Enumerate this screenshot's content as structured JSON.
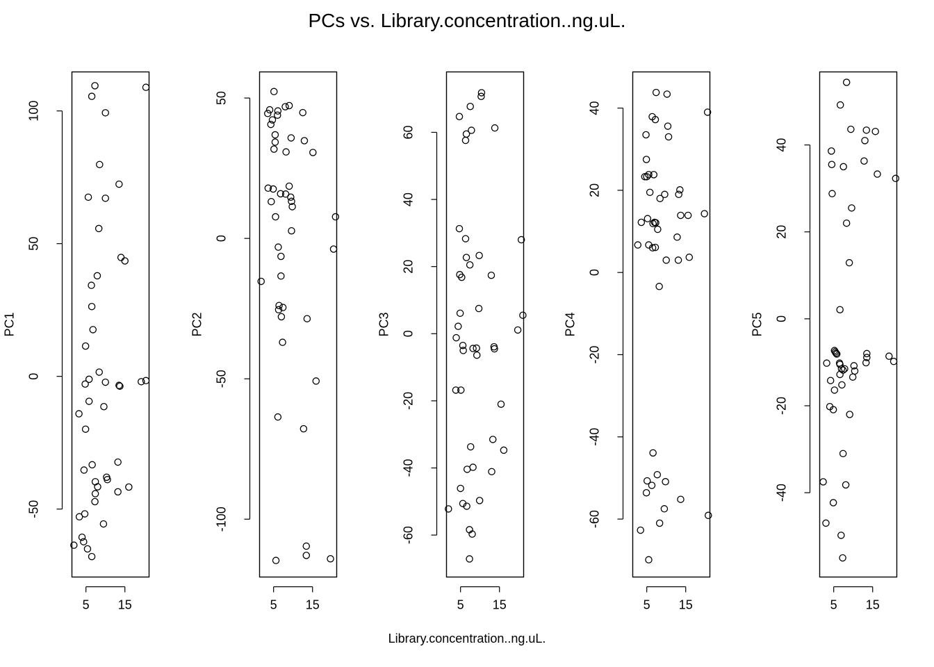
{
  "title": "PCs vs. Library.concentration..ng.uL.",
  "xlabel": "Library.concentration..ng.uL.",
  "chart_data": [
    {
      "type": "scatter",
      "ylabel": "PC1",
      "xlim": [
        1.4,
        21.2
      ],
      "ylim": [
        -75.6,
        114.7
      ],
      "x_ticks": [
        5,
        15
      ],
      "y_ticks": [
        -50,
        0,
        50,
        100
      ],
      "points": [
        [
          7.3,
          109.5
        ],
        [
          6.5,
          105.5
        ],
        [
          20.4,
          108.9
        ],
        [
          10.0,
          99.3
        ],
        [
          8.5,
          79.8
        ],
        [
          13.5,
          72.4
        ],
        [
          5.6,
          67.5
        ],
        [
          10.0,
          67.1
        ],
        [
          8.3,
          55.7
        ],
        [
          14.0,
          44.8
        ],
        [
          15.0,
          43.5
        ],
        [
          7.9,
          37.9
        ],
        [
          6.4,
          34.3
        ],
        [
          6.5,
          26.3
        ],
        [
          6.8,
          17.6
        ],
        [
          4.9,
          11.4
        ],
        [
          8.4,
          1.6
        ],
        [
          5.8,
          -1.1
        ],
        [
          4.8,
          -2.9
        ],
        [
          10.0,
          -2.2
        ],
        [
          13.7,
          -3.7
        ],
        [
          13.5,
          -3.4
        ],
        [
          19.2,
          -2.0
        ],
        [
          20.4,
          -1.6
        ],
        [
          5.8,
          -9.4
        ],
        [
          9.6,
          -11.4
        ],
        [
          3.2,
          -14.1
        ],
        [
          4.9,
          -19.9
        ],
        [
          6.6,
          -33.3
        ],
        [
          13.2,
          -32.3
        ],
        [
          4.5,
          -35.3
        ],
        [
          10.3,
          -38.0
        ],
        [
          10.5,
          -38.9
        ],
        [
          7.4,
          -39.7
        ],
        [
          8.0,
          -41.6
        ],
        [
          16.0,
          -41.7
        ],
        [
          13.2,
          -43.5
        ],
        [
          7.4,
          -44.2
        ],
        [
          7.3,
          -47.2
        ],
        [
          4.7,
          -51.8
        ],
        [
          3.3,
          -52.9
        ],
        [
          9.5,
          -55.6
        ],
        [
          4.0,
          -60.6
        ],
        [
          4.4,
          -62.3
        ],
        [
          1.9,
          -63.6
        ],
        [
          5.4,
          -65.0
        ],
        [
          6.5,
          -67.9
        ]
      ]
    },
    {
      "type": "scatter",
      "ylabel": "PC2",
      "xlim": [
        1.4,
        21.2
      ],
      "ylim": [
        -120.6,
        59.3
      ],
      "x_ticks": [
        5,
        15
      ],
      "y_ticks": [
        -100,
        -50,
        0,
        50
      ],
      "points": [
        [
          5.1,
          52.3
        ],
        [
          3.5,
          44.5
        ],
        [
          4.0,
          45.8
        ],
        [
          6.1,
          45.4
        ],
        [
          6.0,
          43.9
        ],
        [
          4.7,
          42.2
        ],
        [
          4.3,
          40.6
        ],
        [
          8.0,
          46.9
        ],
        [
          9.0,
          47.3
        ],
        [
          12.5,
          44.8
        ],
        [
          5.4,
          36.9
        ],
        [
          9.5,
          35.8
        ],
        [
          5.4,
          34.3
        ],
        [
          12.9,
          34.8
        ],
        [
          5.1,
          31.8
        ],
        [
          8.2,
          30.8
        ],
        [
          15.1,
          30.6
        ],
        [
          9.0,
          18.6
        ],
        [
          3.6,
          17.9
        ],
        [
          4.9,
          17.6
        ],
        [
          6.8,
          15.9
        ],
        [
          8.1,
          15.8
        ],
        [
          9.4,
          14.7
        ],
        [
          9.6,
          13.2
        ],
        [
          4.4,
          13.1
        ],
        [
          9.8,
          11.3
        ],
        [
          5.5,
          7.7
        ],
        [
          20.9,
          7.7
        ],
        [
          9.6,
          2.7
        ],
        [
          6.2,
          -3.1
        ],
        [
          20.4,
          -3.8
        ],
        [
          6.9,
          -6.4
        ],
        [
          1.8,
          -15.3
        ],
        [
          6.9,
          -13.4
        ],
        [
          6.4,
          -23.9
        ],
        [
          6.3,
          -25.4
        ],
        [
          7.4,
          -24.6
        ],
        [
          7.0,
          -27.9
        ],
        [
          13.6,
          -28.6
        ],
        [
          7.3,
          -37.0
        ],
        [
          15.9,
          -50.8
        ],
        [
          6.1,
          -63.6
        ],
        [
          12.7,
          -67.8
        ],
        [
          13.4,
          -109.6
        ],
        [
          5.6,
          -114.7
        ],
        [
          13.4,
          -112.9
        ],
        [
          19.6,
          -114.1
        ]
      ]
    },
    {
      "type": "scatter",
      "ylabel": "PC3",
      "xlim": [
        1.4,
        21.2
      ],
      "ylim": [
        -72.5,
        78.0
      ],
      "x_ticks": [
        5,
        15
      ],
      "y_ticks": [
        -60,
        -40,
        -20,
        0,
        20,
        40,
        60
      ],
      "points": [
        [
          10.4,
          71.8
        ],
        [
          10.3,
          70.7
        ],
        [
          7.5,
          67.7
        ],
        [
          4.7,
          64.7
        ],
        [
          13.8,
          61.3
        ],
        [
          7.8,
          60.6
        ],
        [
          6.5,
          59.5
        ],
        [
          6.3,
          57.6
        ],
        [
          4.7,
          31.3
        ],
        [
          6.3,
          28.3
        ],
        [
          20.6,
          28.0
        ],
        [
          6.5,
          22.7
        ],
        [
          9.8,
          23.3
        ],
        [
          7.4,
          20.5
        ],
        [
          4.8,
          17.6
        ],
        [
          5.3,
          16.8
        ],
        [
          12.9,
          17.4
        ],
        [
          9.7,
          7.5
        ],
        [
          4.9,
          6.1
        ],
        [
          21.0,
          5.5
        ],
        [
          4.4,
          2.2
        ],
        [
          19.7,
          1.1
        ],
        [
          3.9,
          -1.2
        ],
        [
          5.6,
          -3.5
        ],
        [
          5.7,
          -5.0
        ],
        [
          8.2,
          -4.4
        ],
        [
          9.1,
          -4.3
        ],
        [
          13.6,
          -3.9
        ],
        [
          13.7,
          -4.5
        ],
        [
          9.2,
          -6.4
        ],
        [
          3.8,
          -16.8
        ],
        [
          5.1,
          -16.8
        ],
        [
          15.4,
          -21.0
        ],
        [
          13.3,
          -31.5
        ],
        [
          7.6,
          -33.7
        ],
        [
          16.1,
          -34.7
        ],
        [
          8.2,
          -39.8
        ],
        [
          6.7,
          -40.4
        ],
        [
          13.0,
          -41.1
        ],
        [
          5.0,
          -46.1
        ],
        [
          9.9,
          -49.7
        ],
        [
          5.6,
          -50.6
        ],
        [
          6.6,
          -51.4
        ],
        [
          1.9,
          -52.2
        ],
        [
          7.3,
          -58.4
        ],
        [
          8.0,
          -59.7
        ],
        [
          7.3,
          -67.1
        ]
      ]
    },
    {
      "type": "scatter",
      "ylabel": "PC4",
      "xlim": [
        1.4,
        21.2
      ],
      "ylim": [
        -74.1,
        48.8
      ],
      "x_ticks": [
        5,
        15
      ],
      "y_ticks": [
        -60,
        -40,
        -20,
        0,
        20,
        40
      ],
      "points": [
        [
          7.4,
          43.8
        ],
        [
          10.2,
          43.4
        ],
        [
          20.6,
          39.0
        ],
        [
          6.4,
          37.9
        ],
        [
          7.2,
          37.2
        ],
        [
          10.4,
          35.6
        ],
        [
          10.6,
          33.0
        ],
        [
          4.8,
          33.5
        ],
        [
          4.9,
          27.5
        ],
        [
          4.5,
          23.3
        ],
        [
          5.0,
          23.3
        ],
        [
          5.5,
          23.8
        ],
        [
          6.8,
          23.8
        ],
        [
          13.5,
          20.1
        ],
        [
          5.8,
          19.5
        ],
        [
          9.6,
          19.0
        ],
        [
          13.2,
          19.0
        ],
        [
          8.4,
          18.0
        ],
        [
          13.7,
          13.9
        ],
        [
          15.6,
          13.9
        ],
        [
          19.8,
          14.3
        ],
        [
          3.6,
          12.2
        ],
        [
          5.2,
          13.1
        ],
        [
          7.0,
          12.2
        ],
        [
          7.3,
          12.1
        ],
        [
          6.6,
          11.9
        ],
        [
          7.8,
          10.5
        ],
        [
          12.8,
          8.6
        ],
        [
          2.7,
          6.7
        ],
        [
          5.5,
          6.7
        ],
        [
          6.5,
          6.0
        ],
        [
          7.2,
          6.1
        ],
        [
          15.9,
          3.7
        ],
        [
          10.0,
          3.0
        ],
        [
          13.1,
          3.0
        ],
        [
          8.2,
          -3.4
        ],
        [
          6.6,
          -43.9
        ],
        [
          7.7,
          -49.2
        ],
        [
          5.1,
          -50.7
        ],
        [
          9.8,
          -50.9
        ],
        [
          6.3,
          -51.8
        ],
        [
          4.9,
          -53.6
        ],
        [
          13.7,
          -55.2
        ],
        [
          9.5,
          -57.5
        ],
        [
          20.8,
          -59.1
        ],
        [
          8.3,
          -61.0
        ],
        [
          3.4,
          -62.7
        ],
        [
          5.5,
          -69.9
        ]
      ]
    },
    {
      "type": "scatter",
      "ylabel": "PC5",
      "xlim": [
        1.4,
        21.2
      ],
      "ylim": [
        -59.4,
        56.8
      ],
      "x_ticks": [
        5,
        15
      ],
      "y_ticks": [
        -40,
        -20,
        0,
        20,
        40
      ],
      "points": [
        [
          8.3,
          54.4
        ],
        [
          6.7,
          49.2
        ],
        [
          9.4,
          43.6
        ],
        [
          13.4,
          43.4
        ],
        [
          15.7,
          43.1
        ],
        [
          13.0,
          41.0
        ],
        [
          4.4,
          38.6
        ],
        [
          12.8,
          36.3
        ],
        [
          4.5,
          35.5
        ],
        [
          7.5,
          35.0
        ],
        [
          16.2,
          33.3
        ],
        [
          20.9,
          32.3
        ],
        [
          4.6,
          28.8
        ],
        [
          9.6,
          25.5
        ],
        [
          8.3,
          22.0
        ],
        [
          9.0,
          12.9
        ],
        [
          6.6,
          2.1
        ],
        [
          5.2,
          -7.3
        ],
        [
          5.4,
          -7.6
        ],
        [
          5.6,
          -7.9
        ],
        [
          5.8,
          -8.1
        ],
        [
          13.5,
          -8.0
        ],
        [
          19.2,
          -8.6
        ],
        [
          13.5,
          -8.9
        ],
        [
          6.5,
          -10.2
        ],
        [
          6.6,
          -10.5
        ],
        [
          3.2,
          -10.2
        ],
        [
          13.3,
          -10.1
        ],
        [
          20.4,
          -9.8
        ],
        [
          10.2,
          -10.8
        ],
        [
          7.0,
          -11.5
        ],
        [
          7.8,
          -11.5
        ],
        [
          7.4,
          -11.8
        ],
        [
          10.4,
          -12.0
        ],
        [
          6.6,
          -12.8
        ],
        [
          9.9,
          -13.4
        ],
        [
          4.2,
          -14.2
        ],
        [
          7.1,
          -15.2
        ],
        [
          5.2,
          -16.4
        ],
        [
          4.0,
          -20.2
        ],
        [
          4.9,
          -20.9
        ],
        [
          9.1,
          -22.0
        ],
        [
          7.4,
          -31.0
        ],
        [
          2.3,
          -37.5
        ],
        [
          8.1,
          -38.2
        ],
        [
          4.9,
          -42.3
        ],
        [
          3.0,
          -47.0
        ],
        [
          6.9,
          -49.8
        ],
        [
          7.3,
          -55.0
        ]
      ]
    }
  ]
}
